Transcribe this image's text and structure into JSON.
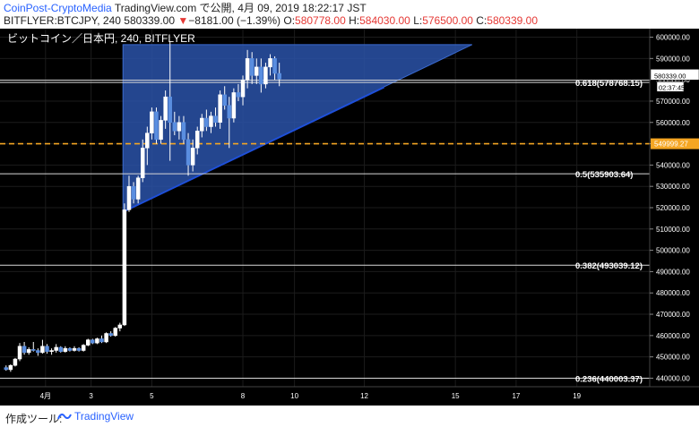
{
  "header": {
    "attribution_site": "CoinPost-CryptoMedia",
    "attribution_rest": " TradingView.com で公開, 4月 09, 2019 18:22:17 JST",
    "symbol": "BITFLYER:BTCJPY, 240",
    "last_price": "580339.00",
    "down_arrow": "▼",
    "change": "−8181.00 (−1.39%)",
    "o_label": "O:",
    "o_value": "580778.00",
    "h_label": "H:",
    "h_value": "584030.00",
    "l_label": "L:",
    "l_value": "576500.00",
    "c_label": "C:",
    "c_value": "580339.00"
  },
  "chart_title": "ビットコイン／日本円, 240, BITFLYER",
  "price_tag": {
    "value": "580339.00",
    "countdown": "02:37:45"
  },
  "orange_tag": "549999.27",
  "footer": {
    "label": "作成ツール:",
    "brand": "TradingView"
  },
  "colors": {
    "background": "#000000",
    "grid": "#1c1c1c",
    "candle": "#5a8ee0",
    "triangle_fill": "#2a52a8",
    "orange": "#f5a623",
    "axis_text": "#ffffff",
    "link": "#2962ff"
  },
  "chart_data": {
    "type": "candlestick",
    "y_axis": {
      "min": 436000,
      "max": 604000,
      "ticks": [
        440000,
        450000,
        460000,
        470000,
        480000,
        490000,
        500000,
        510000,
        520000,
        530000,
        540000,
        550000,
        560000,
        570000,
        580000,
        590000,
        600000
      ],
      "tick_labels": [
        "440000.00",
        "450000.00",
        "460000.00",
        "470000.00",
        "480000.00",
        "490000.00",
        "500000.00",
        "510000.00",
        "520000.00",
        "530000.00",
        "540000.00",
        "550000.00",
        "560000.00",
        "570000.00",
        "580000.00",
        "590000.00",
        "600000.00"
      ]
    },
    "x_axis": {
      "tick_labels": [
        "4月",
        "3",
        "5",
        "8",
        "10",
        "12",
        "15",
        "17",
        "19"
      ],
      "tick_x": [
        1.5,
        3.0,
        5.0,
        8.0,
        9.7,
        12.0,
        15.0,
        17.0,
        19.0
      ],
      "x_min": 0,
      "x_max": 21.4
    },
    "fib_levels": [
      {
        "label": "0.618(578768.15)",
        "value": 578768.15
      },
      {
        "label": "0.5(535903.64)",
        "value": 535903.64
      },
      {
        "label": "0.382(493039.12)",
        "value": 493039.12
      },
      {
        "label": "0.236(440003.37)",
        "value": 440003.37
      }
    ],
    "horizontal_line": {
      "value": 549999.27,
      "style": "dashed"
    },
    "triangle": [
      {
        "x": 4.05,
        "y": 596500
      },
      {
        "x": 15.55,
        "y": 596500
      },
      {
        "x": 4.05,
        "y": 518000
      }
    ],
    "trendline": [
      {
        "x": 4.05,
        "y": 518000
      },
      {
        "x": 12.65,
        "y": 576500
      }
    ],
    "candles": [
      [
        0.2,
        445000,
        446000,
        443500,
        444000
      ],
      [
        0.35,
        444000,
        446500,
        443000,
        446000
      ],
      [
        0.5,
        446000,
        449500,
        445500,
        449000
      ],
      [
        0.65,
        449000,
        456500,
        448000,
        455000
      ],
      [
        0.8,
        455000,
        457000,
        451000,
        452000
      ],
      [
        0.95,
        452000,
        454500,
        451000,
        453500
      ],
      [
        1.1,
        453500,
        457000,
        452500,
        453000
      ],
      [
        1.25,
        453000,
        454000,
        450500,
        452000
      ],
      [
        1.4,
        452000,
        458000,
        451500,
        455000
      ],
      [
        1.55,
        455000,
        456000,
        451500,
        452500
      ],
      [
        1.7,
        452500,
        454000,
        451000,
        453000
      ],
      [
        1.85,
        453000,
        456000,
        452000,
        454500
      ],
      [
        2.0,
        454500,
        455000,
        452000,
        452500
      ],
      [
        2.15,
        452500,
        455000,
        452000,
        454000
      ],
      [
        2.3,
        454000,
        454500,
        452500,
        453000
      ],
      [
        2.45,
        453000,
        455000,
        452500,
        454000
      ],
      [
        2.6,
        454000,
        454500,
        452500,
        453000
      ],
      [
        2.75,
        453000,
        456000,
        452500,
        455500
      ],
      [
        2.9,
        455500,
        458500,
        455000,
        458000
      ],
      [
        3.05,
        458000,
        458500,
        456000,
        456500
      ],
      [
        3.2,
        456500,
        459000,
        456000,
        458500
      ],
      [
        3.35,
        458500,
        460000,
        456500,
        457000
      ],
      [
        3.5,
        457000,
        461500,
        456500,
        461000
      ],
      [
        3.65,
        461000,
        462000,
        459500,
        460000
      ],
      [
        3.8,
        460000,
        464000,
        459500,
        463500
      ],
      [
        3.95,
        463500,
        466000,
        462000,
        465000
      ],
      [
        4.1,
        465000,
        522000,
        464500,
        519000
      ],
      [
        4.25,
        519000,
        535000,
        518000,
        530000
      ],
      [
        4.4,
        530000,
        532000,
        522000,
        524000
      ],
      [
        4.55,
        524000,
        535000,
        522000,
        534000
      ],
      [
        4.7,
        534000,
        552000,
        532000,
        548000
      ],
      [
        4.85,
        548000,
        558000,
        540000,
        555000
      ],
      [
        5.0,
        555000,
        567000,
        552000,
        565000
      ],
      [
        5.15,
        565000,
        567000,
        550000,
        552000
      ],
      [
        5.3,
        552000,
        563000,
        550000,
        561000
      ],
      [
        5.45,
        561000,
        575000,
        557000,
        572000
      ],
      [
        5.6,
        572000,
        598000,
        542000,
        560000
      ],
      [
        5.75,
        560000,
        565000,
        554000,
        556000
      ],
      [
        5.9,
        556000,
        563000,
        552000,
        560000
      ],
      [
        6.05,
        560000,
        563000,
        550000,
        552000
      ],
      [
        6.2,
        552000,
        555000,
        535000,
        540000
      ],
      [
        6.35,
        540000,
        552000,
        537000,
        548000
      ],
      [
        6.5,
        548000,
        558000,
        545000,
        556000
      ],
      [
        6.65,
        556000,
        564000,
        553000,
        562000
      ],
      [
        6.8,
        562000,
        566000,
        556000,
        558000
      ],
      [
        6.95,
        558000,
        565000,
        555000,
        563000
      ],
      [
        7.1,
        563000,
        567000,
        558000,
        560000
      ],
      [
        7.25,
        560000,
        575000,
        557000,
        573000
      ],
      [
        7.4,
        573000,
        577000,
        566000,
        568000
      ],
      [
        7.55,
        568000,
        572000,
        548000,
        562000
      ],
      [
        7.7,
        562000,
        576000,
        560000,
        574000
      ],
      [
        7.85,
        574000,
        578000,
        570000,
        572000
      ],
      [
        8.0,
        572000,
        582000,
        568000,
        580000
      ],
      [
        8.15,
        580000,
        594000,
        576000,
        590000
      ],
      [
        8.3,
        590000,
        593000,
        578000,
        582000
      ],
      [
        8.45,
        582000,
        590000,
        578000,
        586000
      ],
      [
        8.6,
        586000,
        590000,
        574000,
        578000
      ],
      [
        8.75,
        578000,
        588000,
        576000,
        586000
      ],
      [
        8.9,
        586000,
        592000,
        582000,
        590000
      ],
      [
        9.05,
        590000,
        591000,
        580000,
        583000
      ],
      [
        9.2,
        583000,
        588000,
        577000,
        580339
      ]
    ]
  }
}
